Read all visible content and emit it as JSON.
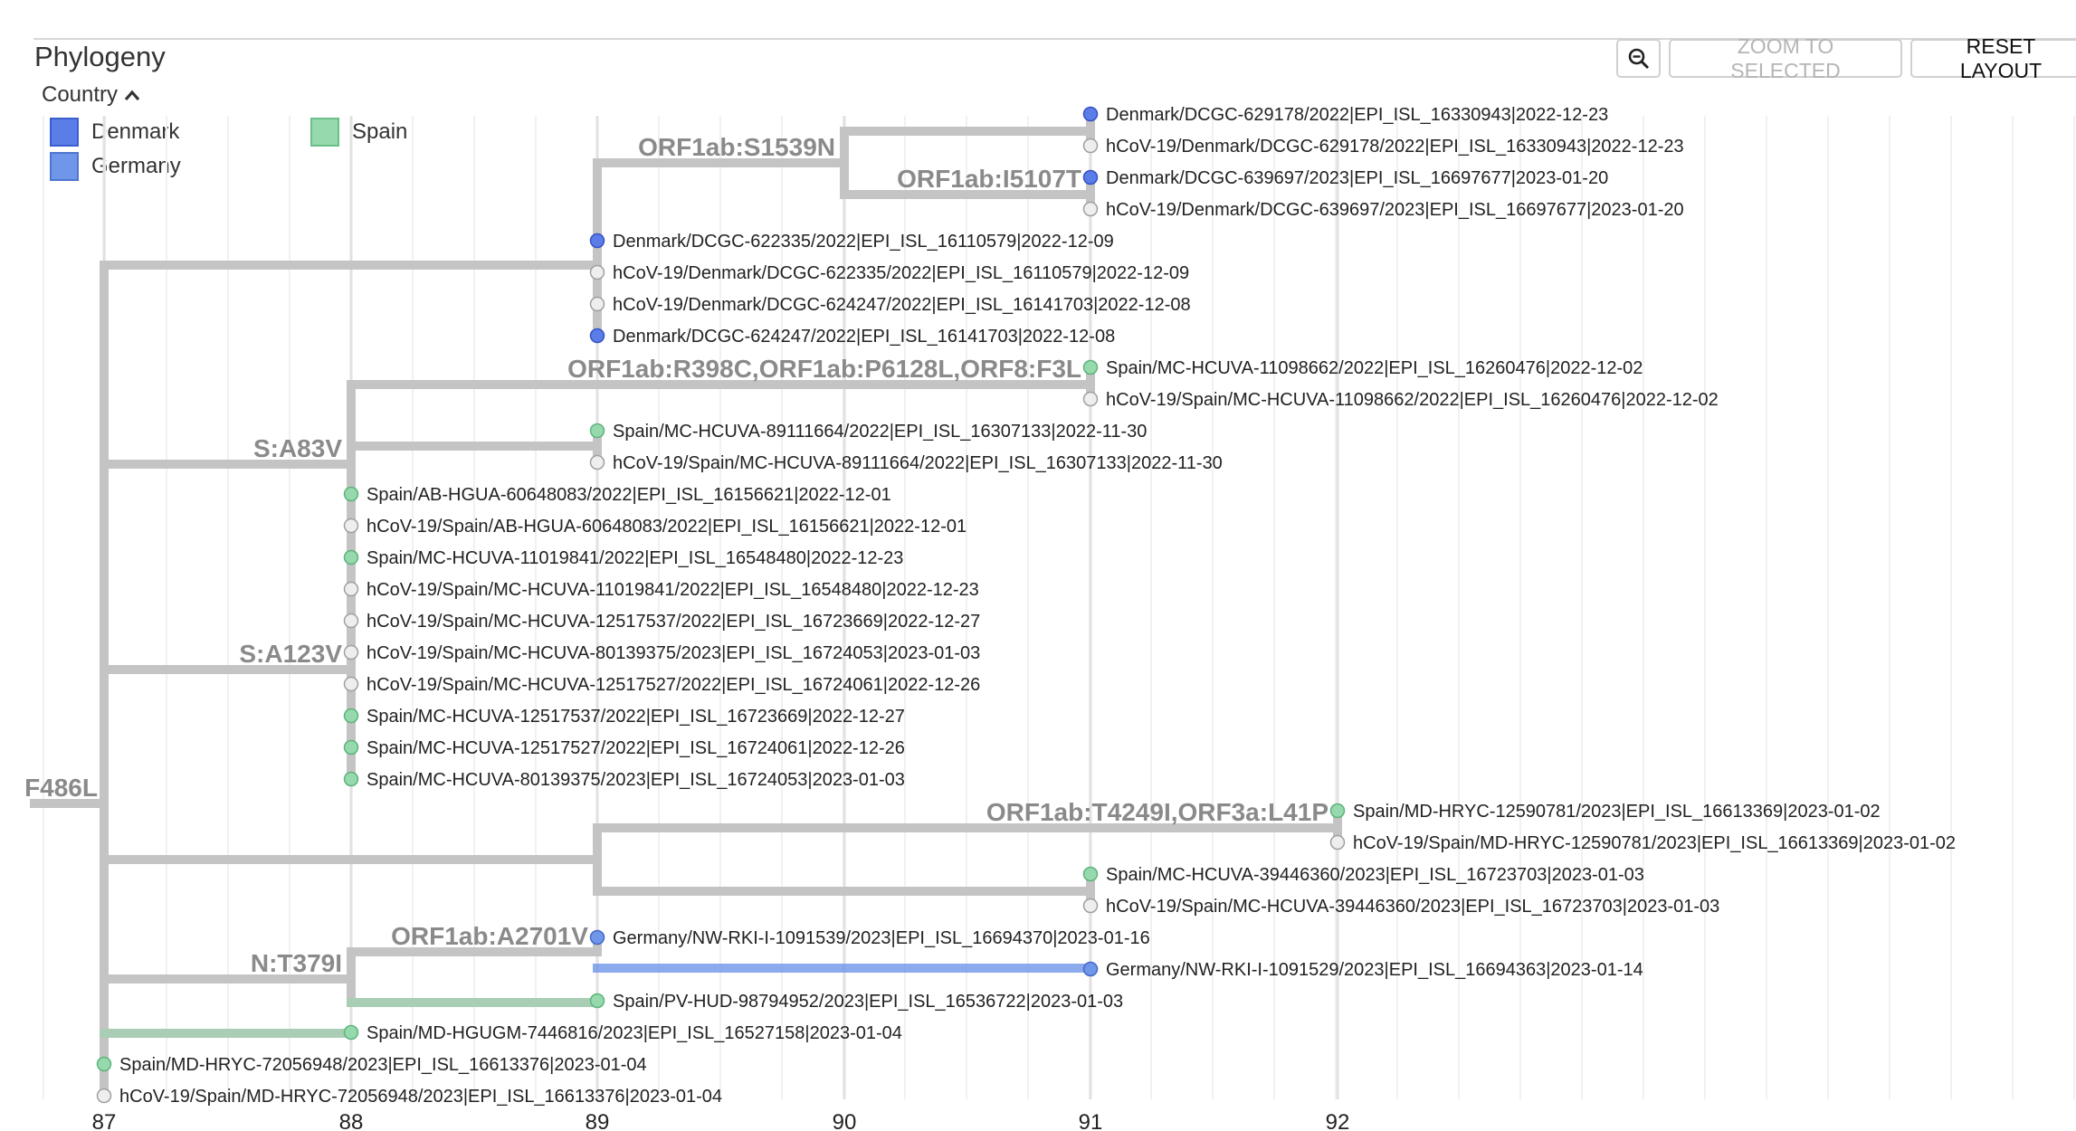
{
  "panel": {
    "title": "Phylogeny"
  },
  "legend": {
    "toggle_label": "Country",
    "items": [
      {
        "label": "Denmark",
        "color": "#5b7de8"
      },
      {
        "label": "Germany",
        "color": "#6f96e8"
      },
      {
        "label": "Spain",
        "color": "#95d9ac"
      }
    ]
  },
  "toolbar": {
    "zoom_icon": "magnifier-minus-icon",
    "zoom_selected_label": "ZOOM TO SELECTED",
    "reset_layout_label": "RESET LAYOUT"
  },
  "axis": {
    "ticks": [
      "87",
      "88",
      "89",
      "90",
      "91",
      "92"
    ]
  },
  "colors": {
    "denmark": "#5b7de8",
    "germany": "#6f96e8",
    "spain": "#95d9ac",
    "unassigned": "#eeeeee",
    "branch": "#c4c4c4",
    "label": "#8a8a8a"
  },
  "mutations": [
    {
      "id": "m_root",
      "text": "F486L"
    },
    {
      "id": "m1",
      "text": "ORF1ab:S1539N"
    },
    {
      "id": "m2",
      "text": "ORF1ab:I5107T"
    },
    {
      "id": "m3",
      "text": "ORF1ab:R398C,ORF1ab:P6128L,ORF8:F3L"
    },
    {
      "id": "m4",
      "text": "S:A83V"
    },
    {
      "id": "m5",
      "text": "S:A123V"
    },
    {
      "id": "m6",
      "text": "ORF1ab:T4249I,ORF3a:L41P"
    },
    {
      "id": "m7",
      "text": "ORF1ab:A2701V"
    },
    {
      "id": "m8",
      "text": "N:T379I"
    }
  ],
  "leaves": [
    {
      "label": "Denmark/DCGC-629178/2022|EPI_ISL_16330943|2022-12-23",
      "country": "Denmark"
    },
    {
      "label": "hCoV-19/Denmark/DCGC-629178/2022|EPI_ISL_16330943|2022-12-23",
      "country": ""
    },
    {
      "label": "Denmark/DCGC-639697/2023|EPI_ISL_16697677|2023-01-20",
      "country": "Denmark"
    },
    {
      "label": "hCoV-19/Denmark/DCGC-639697/2023|EPI_ISL_16697677|2023-01-20",
      "country": ""
    },
    {
      "label": "Denmark/DCGC-622335/2022|EPI_ISL_16110579|2022-12-09",
      "country": "Denmark"
    },
    {
      "label": "hCoV-19/Denmark/DCGC-622335/2022|EPI_ISL_16110579|2022-12-09",
      "country": ""
    },
    {
      "label": "hCoV-19/Denmark/DCGC-624247/2022|EPI_ISL_16141703|2022-12-08",
      "country": ""
    },
    {
      "label": "Denmark/DCGC-624247/2022|EPI_ISL_16141703|2022-12-08",
      "country": "Denmark"
    },
    {
      "label": "Spain/MC-HCUVA-11098662/2022|EPI_ISL_16260476|2022-12-02",
      "country": "Spain"
    },
    {
      "label": "hCoV-19/Spain/MC-HCUVA-11098662/2022|EPI_ISL_16260476|2022-12-02",
      "country": ""
    },
    {
      "label": "Spain/MC-HCUVA-89111664/2022|EPI_ISL_16307133|2022-11-30",
      "country": "Spain"
    },
    {
      "label": "hCoV-19/Spain/MC-HCUVA-89111664/2022|EPI_ISL_16307133|2022-11-30",
      "country": ""
    },
    {
      "label": "Spain/AB-HGUA-60648083/2022|EPI_ISL_16156621|2022-12-01",
      "country": "Spain"
    },
    {
      "label": "hCoV-19/Spain/AB-HGUA-60648083/2022|EPI_ISL_16156621|2022-12-01",
      "country": ""
    },
    {
      "label": "Spain/MC-HCUVA-11019841/2022|EPI_ISL_16548480|2022-12-23",
      "country": "Spain"
    },
    {
      "label": "hCoV-19/Spain/MC-HCUVA-11019841/2022|EPI_ISL_16548480|2022-12-23",
      "country": ""
    },
    {
      "label": "hCoV-19/Spain/MC-HCUVA-12517537/2022|EPI_ISL_16723669|2022-12-27",
      "country": ""
    },
    {
      "label": "hCoV-19/Spain/MC-HCUVA-80139375/2023|EPI_ISL_16724053|2023-01-03",
      "country": ""
    },
    {
      "label": "hCoV-19/Spain/MC-HCUVA-12517527/2022|EPI_ISL_16724061|2022-12-26",
      "country": ""
    },
    {
      "label": "Spain/MC-HCUVA-12517537/2022|EPI_ISL_16723669|2022-12-27",
      "country": "Spain"
    },
    {
      "label": "Spain/MC-HCUVA-12517527/2022|EPI_ISL_16724061|2022-12-26",
      "country": "Spain"
    },
    {
      "label": "Spain/MC-HCUVA-80139375/2023|EPI_ISL_16724053|2023-01-03",
      "country": "Spain"
    },
    {
      "label": "Spain/MD-HRYC-12590781/2023|EPI_ISL_16613369|2023-01-02",
      "country": "Spain"
    },
    {
      "label": "hCoV-19/Spain/MD-HRYC-12590781/2023|EPI_ISL_16613369|2023-01-02",
      "country": ""
    },
    {
      "label": "Spain/MC-HCUVA-39446360/2023|EPI_ISL_16723703|2023-01-03",
      "country": "Spain"
    },
    {
      "label": "hCoV-19/Spain/MC-HCUVA-39446360/2023|EPI_ISL_16723703|2023-01-03",
      "country": ""
    },
    {
      "label": "Germany/NW-RKI-I-1091539/2023|EPI_ISL_16694370|2023-01-16",
      "country": "Germany"
    },
    {
      "label": "Germany/NW-RKI-I-1091529/2023|EPI_ISL_16694363|2023-01-14",
      "country": "Germany"
    },
    {
      "label": "Spain/PV-HUD-98794952/2023|EPI_ISL_16536722|2023-01-03",
      "country": "Spain"
    },
    {
      "label": "Spain/MD-HGUGM-7446816/2023|EPI_ISL_16527158|2023-01-04",
      "country": "Spain"
    },
    {
      "label": "Spain/MD-HRYC-72056948/2023|EPI_ISL_16613376|2023-01-04",
      "country": "Spain"
    },
    {
      "label": "hCoV-19/Spain/MD-HRYC-72056948/2023|EPI_ISL_16613376|2023-01-04",
      "country": ""
    }
  ]
}
